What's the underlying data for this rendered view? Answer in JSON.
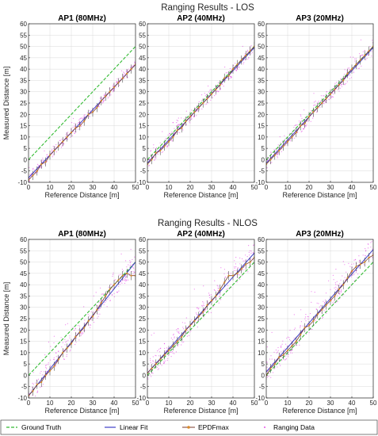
{
  "colors": {
    "ground_truth": "#33bb33",
    "linear_fit": "#4040c8",
    "epdf_line": "#7a3b2e",
    "epdf_marker": "#d98b2a",
    "ranging": "#e020e0",
    "grid": "#d9d9d9",
    "axis": "#262626"
  },
  "legend": {
    "ground_truth": "Ground Truth",
    "linear_fit": "Linear Fit",
    "epdf": "EPDFmax",
    "ranging": "Ranging Data"
  },
  "chart_data": [
    {
      "type": "scatter",
      "figure_title": "Ranging Results - LOS",
      "title": "AP1 (80MHz)",
      "xlabel": "Reference Distance [m]",
      "ylabel": "Measured Distance [m]",
      "xlim": [
        0,
        50
      ],
      "ylim": [
        -10,
        60
      ],
      "xticks": [
        0,
        10,
        20,
        30,
        40,
        50
      ],
      "yticks": [
        -10,
        -5,
        0,
        5,
        10,
        15,
        20,
        25,
        30,
        35,
        40,
        45,
        50,
        55,
        60
      ],
      "grid": true,
      "ground_truth": {
        "slope": 1,
        "intercept": 0
      },
      "linear_fit": {
        "slope": 1.0,
        "intercept": -8
      },
      "ranging_spread": 4,
      "series": [
        {
          "name": "EPDFmax",
          "x": [
            0,
            2,
            4,
            6,
            8,
            10,
            12,
            14,
            16,
            18,
            20,
            22,
            24,
            26,
            28,
            30,
            32,
            34,
            36,
            38,
            40,
            42,
            44,
            46,
            48,
            50
          ],
          "y": [
            -9,
            -7,
            -5,
            -2,
            -1,
            2,
            4,
            6,
            8,
            10,
            12,
            14,
            15,
            17,
            20,
            21,
            23,
            26,
            28,
            30,
            32,
            34,
            36,
            38,
            40,
            42
          ]
        }
      ]
    },
    {
      "type": "scatter",
      "title": "AP2 (40MHz)",
      "xlabel": "Reference Distance [m]",
      "xlim": [
        0,
        50
      ],
      "ylim": [
        -10,
        60
      ],
      "xticks": [
        0,
        10,
        20,
        30,
        40,
        50
      ],
      "yticks": [
        -10,
        -5,
        0,
        5,
        10,
        15,
        20,
        25,
        30,
        35,
        40,
        45,
        50,
        55,
        60
      ],
      "grid": true,
      "ground_truth": {
        "slope": 1,
        "intercept": 0
      },
      "linear_fit": {
        "slope": 1.02,
        "intercept": -1.5
      },
      "ranging_spread": 5,
      "series": [
        {
          "name": "EPDFmax",
          "x": [
            0,
            2,
            4,
            6,
            8,
            10,
            12,
            14,
            16,
            18,
            20,
            22,
            24,
            26,
            28,
            30,
            32,
            34,
            36,
            38,
            40,
            42,
            44,
            46,
            48,
            50
          ],
          "y": [
            -2,
            0,
            3,
            4,
            6,
            8,
            10,
            13,
            14,
            17,
            19,
            21,
            23,
            25,
            27,
            29,
            31,
            33,
            36,
            37,
            40,
            42,
            44,
            46,
            48,
            50
          ]
        }
      ]
    },
    {
      "type": "scatter",
      "title": "AP3 (20MHz)",
      "xlabel": "Reference Distance [m]",
      "xlim": [
        0,
        50
      ],
      "ylim": [
        -10,
        60
      ],
      "xticks": [
        0,
        10,
        20,
        30,
        40,
        50
      ],
      "yticks": [
        -10,
        -5,
        0,
        5,
        10,
        15,
        20,
        25,
        30,
        35,
        40,
        45,
        50,
        55,
        60
      ],
      "grid": true,
      "ground_truth": {
        "slope": 1,
        "intercept": 0
      },
      "linear_fit": {
        "slope": 1.02,
        "intercept": -1.5
      },
      "ranging_spread": 6,
      "series": [
        {
          "name": "EPDFmax",
          "x": [
            0,
            2,
            4,
            6,
            8,
            10,
            12,
            14,
            16,
            18,
            20,
            22,
            24,
            26,
            28,
            30,
            32,
            34,
            36,
            38,
            40,
            42,
            44,
            46,
            48,
            50
          ],
          "y": [
            -2,
            0,
            2,
            4,
            6,
            8,
            10,
            12,
            15,
            16,
            19,
            21,
            23,
            25,
            27,
            29,
            31,
            33,
            35,
            38,
            40,
            42,
            44,
            46,
            48,
            50
          ]
        }
      ]
    },
    {
      "type": "scatter",
      "figure_title": "Ranging Results - NLOS",
      "title": "AP1 (80MHz)",
      "xlabel": "Reference Distance [m]",
      "ylabel": "Measured Distance [m]",
      "xlim": [
        0,
        50
      ],
      "ylim": [
        -10,
        60
      ],
      "xticks": [
        0,
        10,
        20,
        30,
        40,
        50
      ],
      "yticks": [
        -10,
        -5,
        0,
        5,
        10,
        15,
        20,
        25,
        30,
        35,
        40,
        45,
        50,
        55,
        60
      ],
      "grid": true,
      "ground_truth": {
        "slope": 1,
        "intercept": 0
      },
      "linear_fit": {
        "slope": 1.18,
        "intercept": -9
      },
      "ranging_spread": 8,
      "series": [
        {
          "name": "EPDFmax",
          "x": [
            0,
            2,
            4,
            6,
            8,
            10,
            12,
            14,
            16,
            18,
            20,
            22,
            24,
            26,
            28,
            30,
            32,
            34,
            36,
            38,
            40,
            42,
            44,
            46,
            48,
            50
          ],
          "y": [
            -9,
            -7,
            -4,
            -3,
            0,
            2,
            4,
            7,
            10,
            12,
            14,
            17,
            19,
            21,
            24,
            26,
            29,
            32,
            35,
            38,
            40,
            42,
            44,
            45,
            44,
            44
          ]
        }
      ]
    },
    {
      "type": "scatter",
      "title": "AP2 (40MHz)",
      "xlabel": "Reference Distance [m]",
      "xlim": [
        0,
        50
      ],
      "ylim": [
        -10,
        60
      ],
      "xticks": [
        0,
        10,
        20,
        30,
        40,
        50
      ],
      "yticks": [
        -10,
        -5,
        0,
        5,
        10,
        15,
        20,
        25,
        30,
        35,
        40,
        45,
        50,
        55,
        60
      ],
      "grid": true,
      "ground_truth": {
        "slope": 1,
        "intercept": 0
      },
      "linear_fit": {
        "slope": 1.06,
        "intercept": 1
      },
      "ranging_spread": 10,
      "series": [
        {
          "name": "EPDFmax",
          "x": [
            0,
            2,
            4,
            6,
            8,
            10,
            12,
            14,
            16,
            18,
            20,
            22,
            24,
            26,
            28,
            30,
            32,
            34,
            36,
            38,
            40,
            42,
            44,
            46,
            48,
            50
          ],
          "y": [
            1,
            3,
            5,
            7,
            9,
            11,
            13,
            15,
            17,
            20,
            22,
            24,
            26,
            28,
            31,
            33,
            35,
            38,
            41,
            44,
            44,
            45,
            47,
            49,
            50,
            52
          ]
        }
      ]
    },
    {
      "type": "scatter",
      "title": "AP3 (20MHz)",
      "xlabel": "Reference Distance [m]",
      "xlim": [
        0,
        50
      ],
      "ylim": [
        -10,
        60
      ],
      "xticks": [
        0,
        10,
        20,
        30,
        40,
        50
      ],
      "yticks": [
        -10,
        -5,
        0,
        5,
        10,
        15,
        20,
        25,
        30,
        35,
        40,
        45,
        50,
        55,
        60
      ],
      "grid": true,
      "ground_truth": {
        "slope": 1,
        "intercept": 0
      },
      "linear_fit": {
        "slope": 1.08,
        "intercept": 1.5
      },
      "ranging_spread": 10,
      "series": [
        {
          "name": "EPDFmax",
          "x": [
            0,
            2,
            4,
            6,
            8,
            10,
            12,
            14,
            16,
            18,
            20,
            22,
            24,
            26,
            28,
            30,
            32,
            34,
            36,
            38,
            40,
            42,
            44,
            46,
            48,
            50
          ],
          "y": [
            0,
            3,
            5,
            8,
            9,
            11,
            13,
            15,
            18,
            21,
            22,
            24,
            27,
            29,
            31,
            33,
            35,
            38,
            40,
            43,
            46,
            48,
            49,
            50,
            52,
            53
          ]
        }
      ]
    }
  ]
}
